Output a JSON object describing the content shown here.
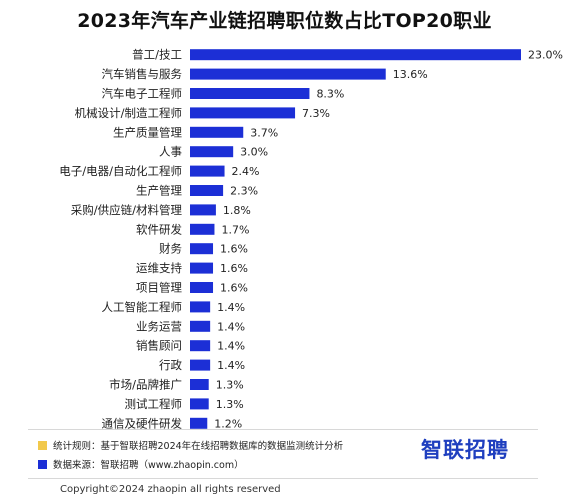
{
  "header": {
    "title": "2023年汽车产业链招聘职位数占比TOP20职业"
  },
  "chart_data": {
    "type": "bar",
    "orientation": "horizontal",
    "title": "2023年汽车产业链招聘职位数占比TOP20职业",
    "categories": [
      "普工/技工",
      "汽车销售与服务",
      "汽车电子工程师",
      "机械设计/制造工程师",
      "生产质量管理",
      "人事",
      "电子/电器/自动化工程师",
      "生产管理",
      "采购/供应链/材料管理",
      "软件研发",
      "财务",
      "运维支持",
      "项目管理",
      "人工智能工程师",
      "业务运营",
      "销售顾问",
      "行政",
      "市场/品牌推广",
      "测试工程师",
      "通信及硬件研发"
    ],
    "values": [
      23.0,
      13.6,
      8.3,
      7.3,
      3.7,
      3.0,
      2.4,
      2.3,
      1.8,
      1.7,
      1.6,
      1.6,
      1.6,
      1.4,
      1.4,
      1.4,
      1.4,
      1.3,
      1.3,
      1.2
    ],
    "value_labels": [
      "23.0%",
      "13.6%",
      "8.3%",
      "7.3%",
      "3.7%",
      "3.0%",
      "2.4%",
      "2.3%",
      "1.8%",
      "1.7%",
      "1.6%",
      "1.6%",
      "1.6%",
      "1.4%",
      "1.4%",
      "1.4%",
      "1.4%",
      "1.3%",
      "1.3%",
      "1.2%"
    ],
    "unit": "%",
    "bar_color": "#1c2fd6",
    "xlim": [
      0,
      23.0
    ],
    "grid": false,
    "legend": "bottom-left"
  },
  "legend": [
    {
      "text": "统计规则：基于智联招聘2024年在线招聘数据库的数据监测统计分析",
      "color": "#f2c94c"
    },
    {
      "text": "数据来源：智联招聘（www.zhaopin.com）",
      "color": "#1c2fd6"
    }
  ],
  "brand": {
    "logo_text": "智联招聘",
    "color": "#1f3fbf"
  },
  "footer": {
    "copyright": "Copyright©2024 zhaopin all rights reserved"
  }
}
